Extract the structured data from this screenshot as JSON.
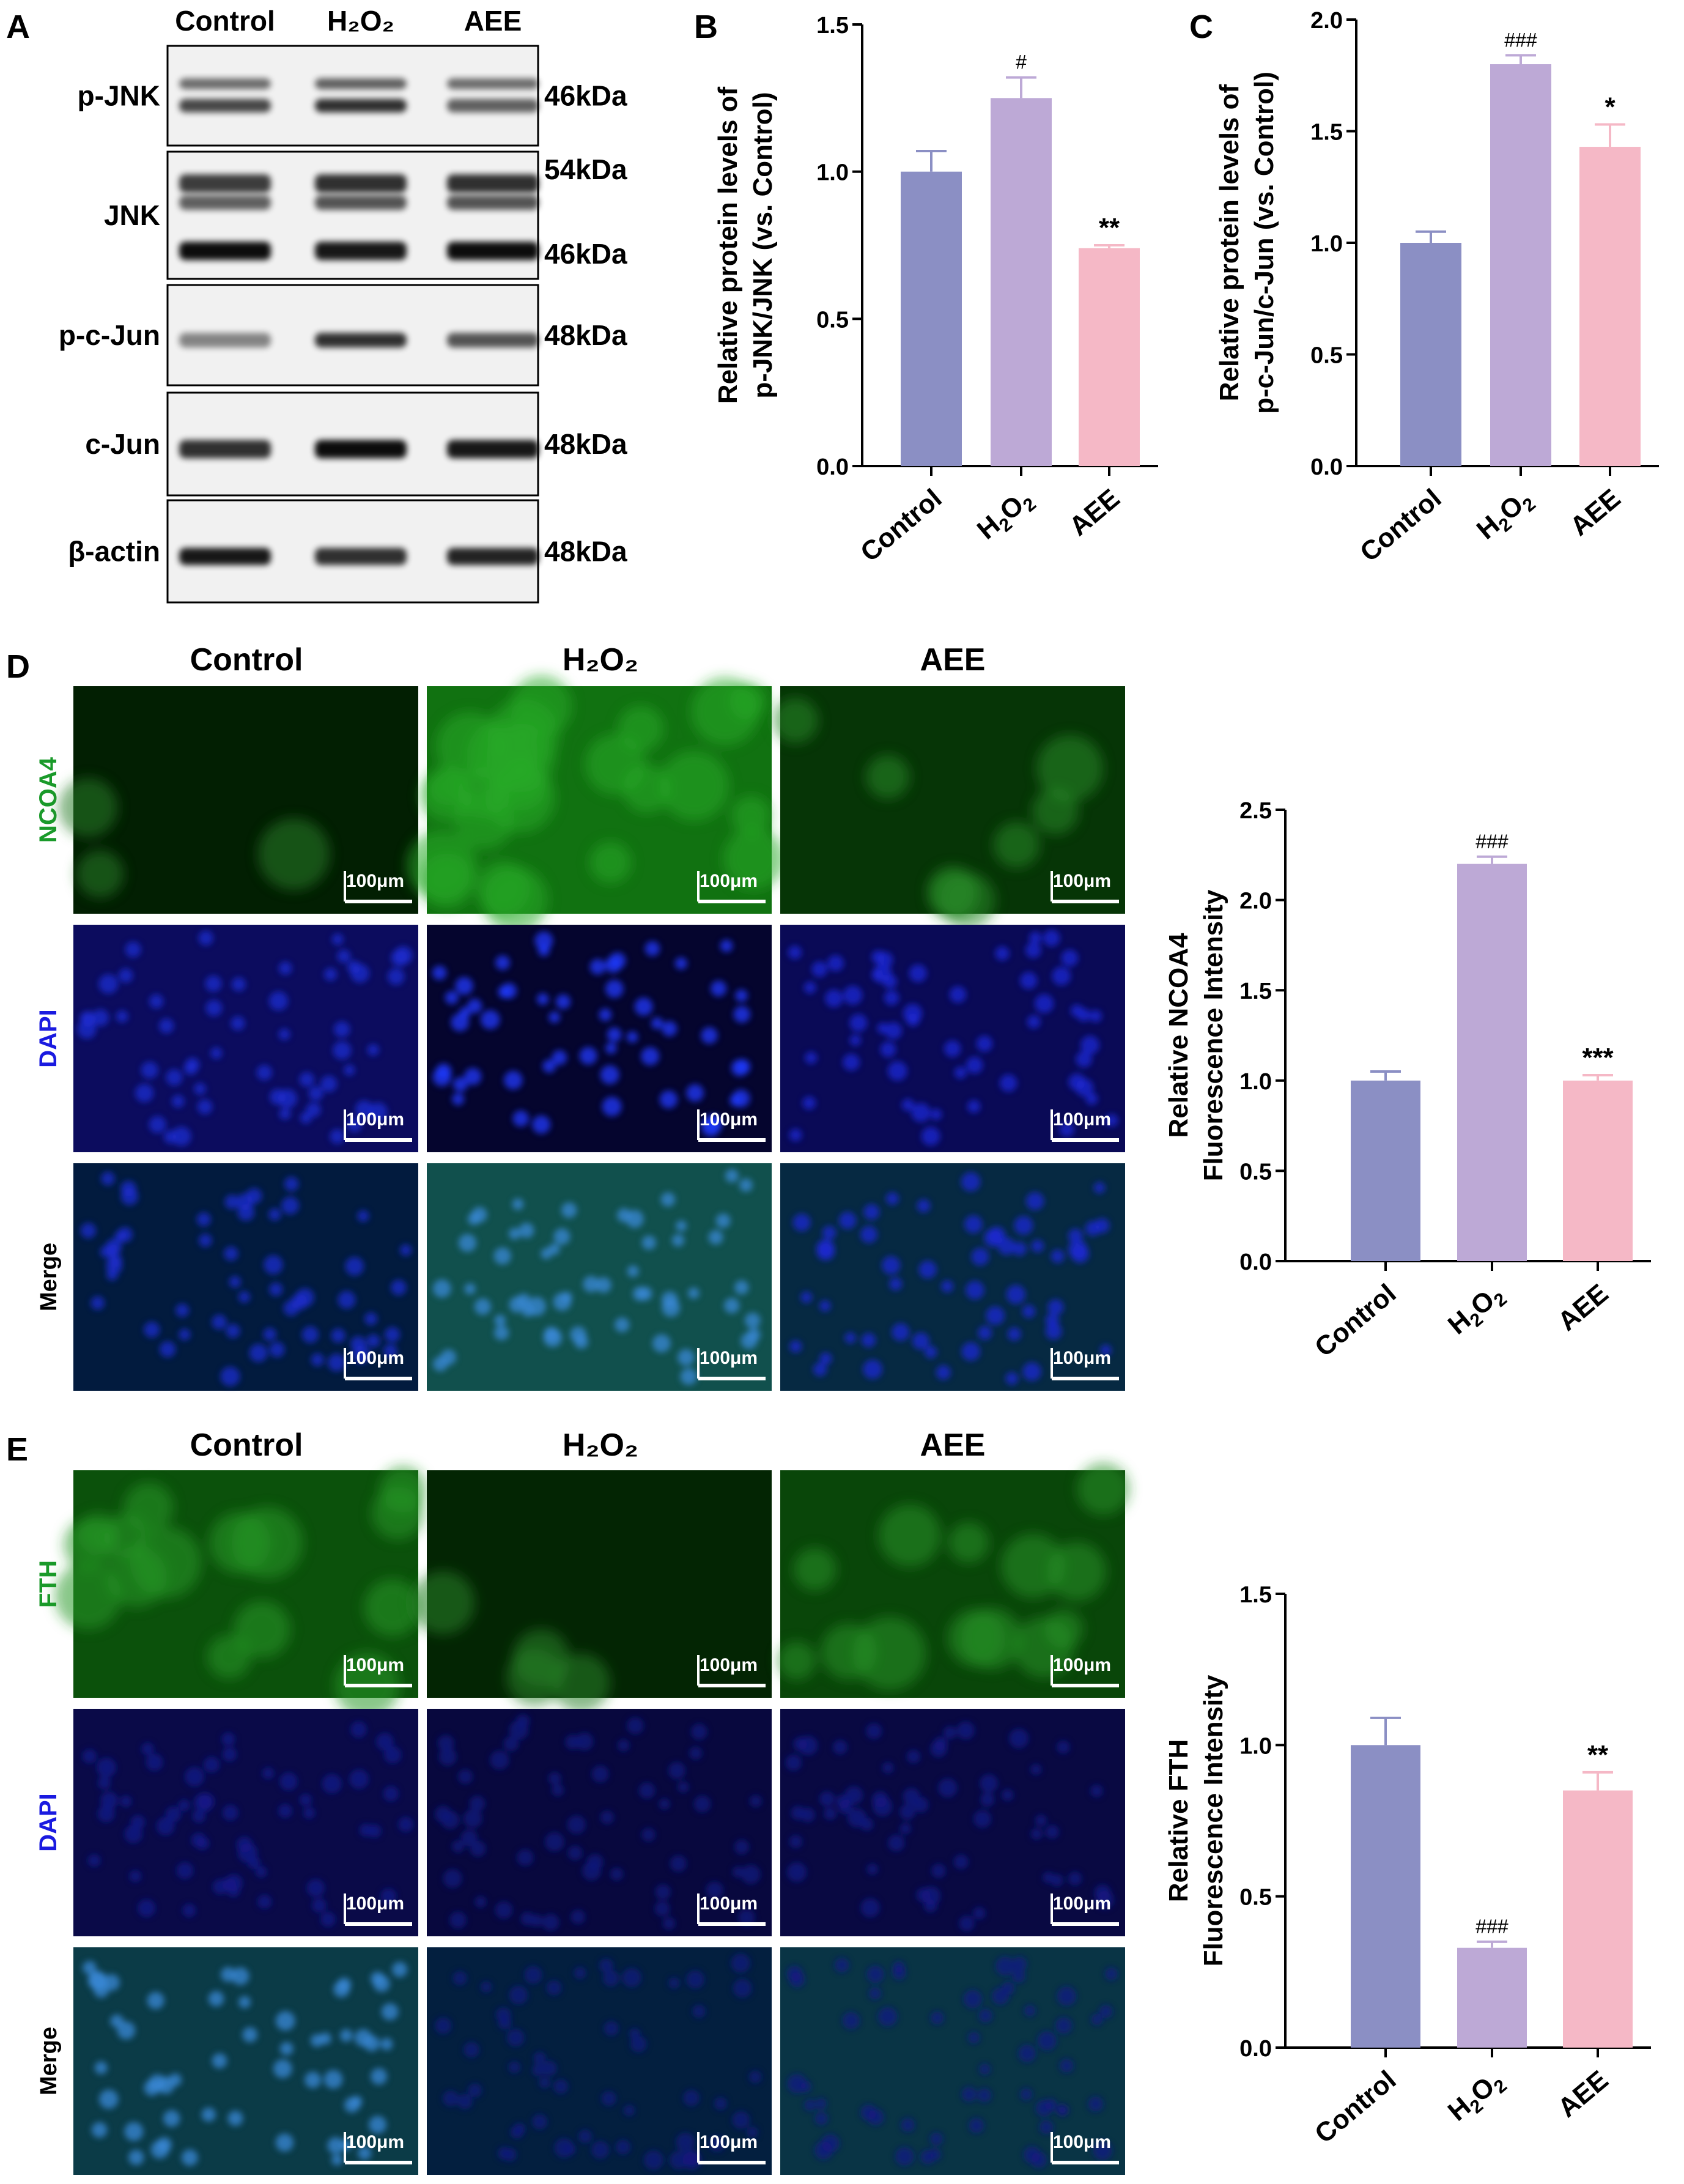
{
  "panels": {
    "A": {
      "letter": "A",
      "lanes": [
        "Control",
        "H₂O₂",
        "AEE"
      ],
      "blots": [
        {
          "label": "p-JNK",
          "sizes": [
            "46kDa"
          ]
        },
        {
          "label": "JNK",
          "sizes": [
            "54kDa",
            "46kDa"
          ]
        },
        {
          "label": "p-c-Jun",
          "sizes": [
            "48kDa"
          ]
        },
        {
          "label": "c-Jun",
          "sizes": [
            "48kDa"
          ]
        },
        {
          "label": "β-actin",
          "sizes": [
            "48kDa"
          ]
        }
      ]
    },
    "D": {
      "letter": "D",
      "columns": [
        "Control",
        "H₂O₂",
        "AEE"
      ],
      "rows": [
        "NCOA4",
        "DAPI",
        "Merge"
      ],
      "scale_bar": "100μm"
    },
    "E": {
      "letter": "E",
      "columns": [
        "Control",
        "H₂O₂",
        "AEE"
      ],
      "rows": [
        "FTH",
        "DAPI",
        "Merge"
      ],
      "scale_bar": "100μm"
    }
  },
  "colors": {
    "control": "#8b8fc4",
    "h2o2": "#bda9d6",
    "aee": "#f5b8c6",
    "green_label": "#1a9a2a",
    "blue_label": "#1a1ae0"
  },
  "chart_data": [
    {
      "id": "B",
      "type": "bar",
      "letter": "B",
      "categories": [
        "Control",
        "H2O2",
        "AEE"
      ],
      "values": [
        1.0,
        1.25,
        0.74
      ],
      "errors": [
        0.07,
        0.07,
        0.01
      ],
      "annotations": [
        "",
        "#",
        "**"
      ],
      "ylabel_lines": [
        "Relative protein levels of",
        "p-JNK/JNK (vs. Control)"
      ],
      "ylim": [
        0,
        1.5
      ],
      "yticks": [
        "0.0",
        "0.5",
        "1.0",
        "1.5"
      ]
    },
    {
      "id": "C",
      "type": "bar",
      "letter": "C",
      "categories": [
        "Control",
        "H2O2",
        "AEE"
      ],
      "values": [
        1.0,
        1.8,
        1.43
      ],
      "errors": [
        0.05,
        0.04,
        0.1
      ],
      "annotations": [
        "",
        "###",
        "*"
      ],
      "ylabel_lines": [
        "Relative protein levels of",
        "p-c-Jun/c-Jun (vs. Control)"
      ],
      "ylim": [
        0,
        2.0
      ],
      "yticks": [
        "0.0",
        "0.5",
        "1.0",
        "1.5",
        "2.0"
      ]
    },
    {
      "id": "D",
      "type": "bar",
      "categories": [
        "Control",
        "H2O2",
        "AEE"
      ],
      "values": [
        1.0,
        2.2,
        1.0
      ],
      "errors": [
        0.05,
        0.04,
        0.03
      ],
      "annotations": [
        "",
        "###",
        "***"
      ],
      "ylabel_lines": [
        "Relative NCOA4",
        "Fluorescence Intensity"
      ],
      "ylim": [
        0,
        2.5
      ],
      "yticks": [
        "0.0",
        "0.5",
        "1.0",
        "1.5",
        "2.0",
        "2.5"
      ]
    },
    {
      "id": "E",
      "type": "bar",
      "categories": [
        "Control",
        "H2O2",
        "AEE"
      ],
      "values": [
        1.0,
        0.33,
        0.85
      ],
      "errors": [
        0.09,
        0.02,
        0.06
      ],
      "annotations": [
        "",
        "###",
        "**"
      ],
      "ylabel_lines": [
        "Relative FTH",
        "Fluorescence Intensity"
      ],
      "ylim": [
        0,
        1.5
      ],
      "yticks": [
        "0.0",
        "0.5",
        "1.0",
        "1.5"
      ]
    }
  ]
}
